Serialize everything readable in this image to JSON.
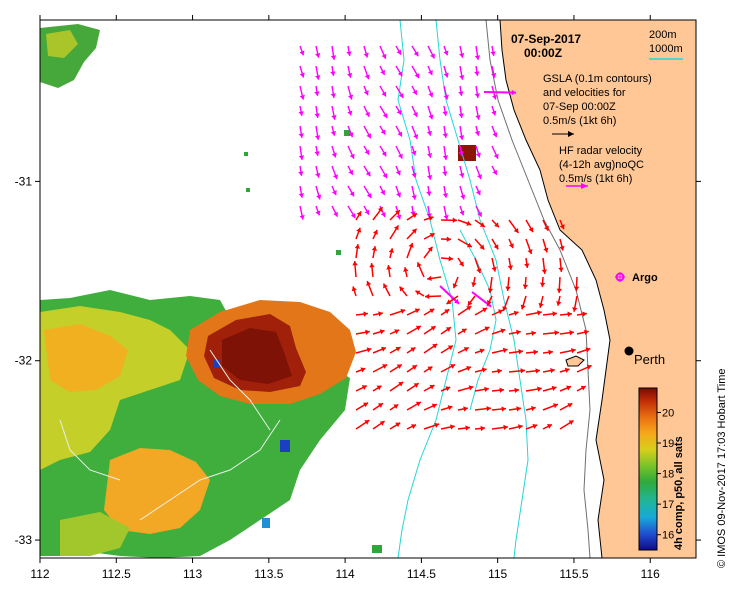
{
  "map": {
    "date_line": "07-Sep-2017",
    "time_line": "00:00Z",
    "contour_legend": {
      "c200": "200m",
      "c1000": "1000m",
      "c200_color": "#6f6f6f",
      "c1000_color": "#25d6d6"
    },
    "gsla_block": {
      "line1": "GSLA (0.1m contours)",
      "line2": "and velocities for",
      "line3": "07-Sep 00:00Z",
      "line4": "0.5m/s (1kt 6h)"
    },
    "hf_block": {
      "line1": "HF radar velocity",
      "line2": "(4-12h avg)noQC",
      "line3": "0.5m/s (1kt 6h)"
    },
    "argo_label": "Argo",
    "city_label": "Perth",
    "side_label": "© IMOS 09-Nov-2017 17:03 Hobart Time",
    "colorbar": {
      "title": "4h comp, p50, all sats",
      "min": 15.5,
      "max": 20.8,
      "ticks": [
        "16",
        "17",
        "18",
        "19",
        "20"
      ],
      "tick_values": [
        16,
        17,
        18,
        19,
        20
      ]
    },
    "x_ticks": [
      "112",
      "112.5",
      "113",
      "113.5",
      "114",
      "114.5",
      "115",
      "115.5",
      "116"
    ],
    "y_ticks": [
      "-31",
      "-32",
      "-33"
    ],
    "x_tick_values": [
      112,
      112.5,
      113,
      113.5,
      114,
      114.5,
      115,
      115.5,
      116
    ],
    "y_tick_values": [
      -31,
      -32,
      -33
    ],
    "lon_range": [
      112,
      116.3
    ],
    "lat_range": [
      -33.1,
      -30.1
    ],
    "colors": {
      "land": "#ffc796",
      "gsla_arrows": "#ff00ff",
      "hf_arrows": "#ff0000",
      "contour_1000m": "#25d6d6",
      "argo_marker": "#ff00ff",
      "city_marker": "#000000"
    }
  }
}
